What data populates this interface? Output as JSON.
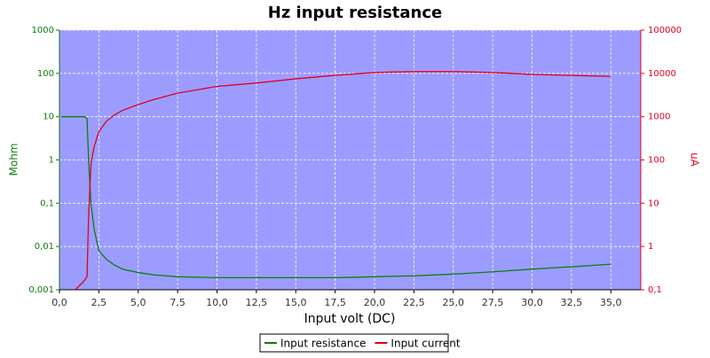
{
  "chart_data": {
    "type": "line",
    "title": "Hz input resistance",
    "xlabel": "Input volt (DC)",
    "ylabel": "Mohm",
    "y2label": "uA",
    "xlim": [
      0,
      36.9
    ],
    "ylim": [
      0.001,
      1000
    ],
    "y2lim": [
      0.1,
      100000
    ],
    "ylog": true,
    "y2log": true,
    "grid": true,
    "legend": "bottom",
    "xticks": [
      {
        "value": 0,
        "label": "0,0"
      },
      {
        "value": 2.5,
        "label": "2,5"
      },
      {
        "value": 5,
        "label": "5,0"
      },
      {
        "value": 7.5,
        "label": "7,5"
      },
      {
        "value": 10,
        "label": "10,0"
      },
      {
        "value": 12.5,
        "label": "12,5"
      },
      {
        "value": 15,
        "label": "15,0"
      },
      {
        "value": 17.5,
        "label": "17,5"
      },
      {
        "value": 20,
        "label": "20,0"
      },
      {
        "value": 22.5,
        "label": "22,5"
      },
      {
        "value": 25,
        "label": "25,0"
      },
      {
        "value": 27.5,
        "label": "27,5"
      },
      {
        "value": 30,
        "label": "30,0"
      },
      {
        "value": 32.5,
        "label": "32,5"
      },
      {
        "value": 35,
        "label": "35,0"
      }
    ],
    "yticks": [
      {
        "value": 0.001,
        "label": "0,001"
      },
      {
        "value": 0.01,
        "label": "0,01"
      },
      {
        "value": 0.1,
        "label": "0,1"
      },
      1,
      10,
      100,
      1000
    ],
    "y2ticks": [
      {
        "value": 0.1,
        "label": "0,1"
      },
      1,
      10,
      100,
      1000,
      10000,
      100000
    ],
    "series": [
      {
        "name": "Input resistance",
        "color": "#117a11",
        "x": [
          0.1,
          1.0,
          1.6,
          1.75,
          1.85,
          2.0,
          2.2,
          2.5,
          3.0,
          3.5,
          4.0,
          5.0,
          6.0,
          7.5,
          10,
          12.5,
          15,
          17.5,
          20,
          22.5,
          25,
          27.5,
          30,
          32.5,
          35
        ],
        "values": [
          10,
          10,
          10,
          9,
          1,
          0.1,
          0.025,
          0.008,
          0.005,
          0.0037,
          0.003,
          0.0025,
          0.0022,
          0.002,
          0.0019,
          0.0019,
          0.0019,
          0.0019,
          0.002,
          0.0021,
          0.0023,
          0.0026,
          0.003,
          0.0034,
          0.0039
        ]
      },
      {
        "name": "Input current",
        "color": "#e00020",
        "axis": "y2",
        "x": [
          1.0,
          1.5,
          1.75,
          1.85,
          2.0,
          2.2,
          2.5,
          3.0,
          3.5,
          4.0,
          5.0,
          6.0,
          7.5,
          10,
          12.5,
          15,
          17.5,
          20,
          22.5,
          25,
          27.5,
          30,
          32.5,
          35
        ],
        "values": [
          0.1,
          0.15,
          0.2,
          5,
          80,
          200,
          450,
          800,
          1100,
          1400,
          1900,
          2500,
          3500,
          5000,
          6000,
          7500,
          9000,
          10500,
          11000,
          11000,
          10500,
          9500,
          9000,
          8500
        ]
      }
    ]
  }
}
